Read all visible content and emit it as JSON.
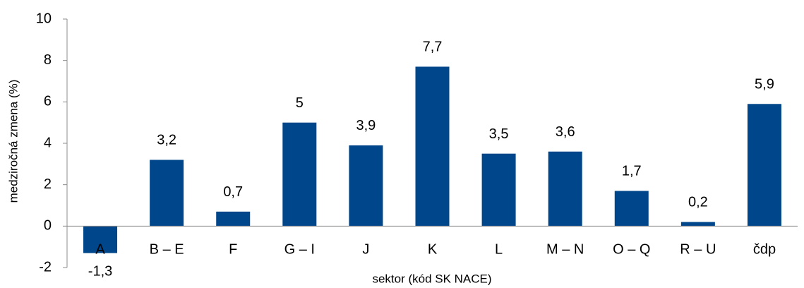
{
  "chart_data": {
    "type": "bar",
    "y_label": "medziročná zmena (%)",
    "x_label": "sektor (kód SK NACE)",
    "categories": [
      "A",
      "B – E",
      "F",
      "G – I",
      "J",
      "K",
      "L",
      "M – N",
      "O – Q",
      "R – U",
      "čdp"
    ],
    "values": [
      -1.3,
      3.2,
      0.7,
      5,
      3.9,
      7.7,
      3.5,
      3.6,
      1.7,
      0.2,
      5.9
    ],
    "value_labels": [
      "-1,3",
      "3,2",
      "0,7",
      "5",
      "3,9",
      "7,7",
      "3,5",
      "3,6",
      "1,7",
      "0,2",
      "5,9"
    ],
    "color": "#00468b",
    "ylim": [
      -2,
      10
    ],
    "yticks": [
      -2,
      0,
      2,
      4,
      6,
      8,
      10
    ],
    "grid": false
  }
}
